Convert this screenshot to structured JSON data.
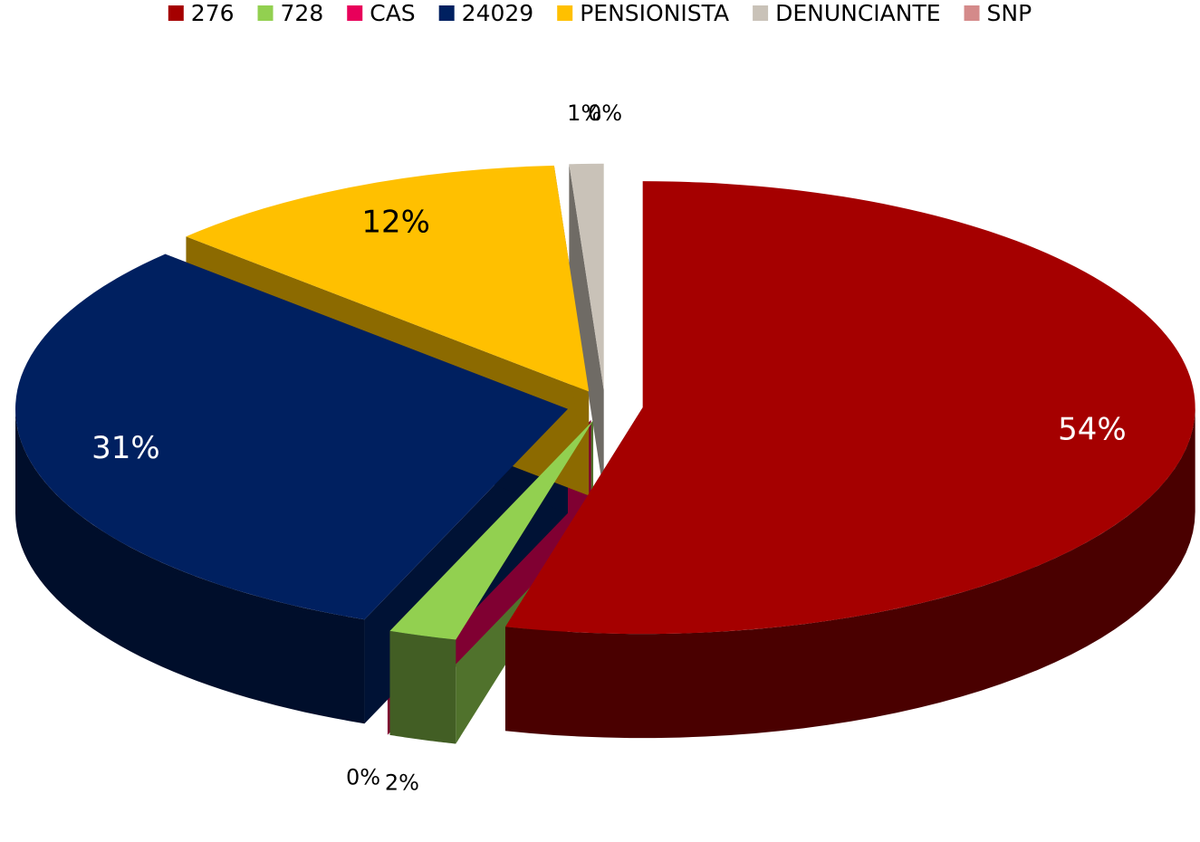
{
  "chart_data": {
    "type": "pie",
    "categories": [
      "276",
      "728",
      "CAS",
      "24029",
      "PENSIONISTA",
      "DENUNCIANTE",
      "SNP"
    ],
    "values": [
      54,
      2,
      0,
      31,
      12,
      1,
      0
    ],
    "value_labels": [
      "54%",
      "2%",
      "0%",
      "31%",
      "12%",
      "1%",
      "0%"
    ],
    "colors": [
      "#a50000",
      "#92d050",
      "#e8005a",
      "#002060",
      "#ffc000",
      "#c9c2b8",
      "#d48a8a"
    ],
    "legend": "top"
  }
}
